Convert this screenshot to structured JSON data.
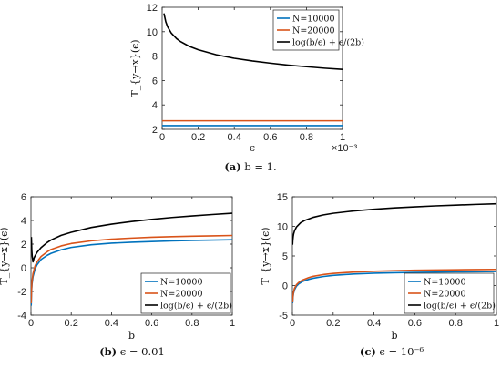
{
  "chart_data": [
    {
      "type": "line",
      "id": "a",
      "caption_tag": "(a)",
      "caption_text": "b = 1.",
      "xlabel": "ϵ",
      "ylabel": "T_{y→x}(ϵ)",
      "x_exponent": "×10⁻³",
      "xlim": [
        0,
        0.001
      ],
      "ylim": [
        2,
        12
      ],
      "xticks": [
        0,
        0.0002,
        0.0004,
        0.0006,
        0.0008,
        0.001
      ],
      "xtick_labels": [
        "0",
        "0.2",
        "0.4",
        "0.6",
        "0.8",
        "1"
      ],
      "yticks": [
        2,
        4,
        6,
        8,
        10,
        12
      ],
      "ytick_labels": [
        "2",
        "4",
        "6",
        "8",
        "10",
        "12"
      ],
      "grid": false,
      "legend_position": "top-right",
      "series": [
        {
          "name": "N=10000",
          "color": "#0072BD",
          "x": [
            0,
            0.0002,
            0.0004,
            0.0006,
            0.0008,
            0.001
          ],
          "y": [
            2.3,
            2.3,
            2.3,
            2.3,
            2.3,
            2.3
          ]
        },
        {
          "name": "N=20000",
          "color": "#D95319",
          "x": [
            0,
            0.0002,
            0.0004,
            0.0006,
            0.0008,
            0.001
          ],
          "y": [
            2.7,
            2.7,
            2.7,
            2.7,
            2.7,
            2.7
          ]
        },
        {
          "name": "log(b/ϵ) + ϵ/(2b)",
          "color": "#000000",
          "x": [
            1e-05,
            2e-05,
            3e-05,
            5e-05,
            8e-05,
            0.0001,
            0.00015,
            0.0002,
            0.0003,
            0.0004,
            0.0005,
            0.0006,
            0.0007,
            0.0008,
            0.0009,
            0.001
          ],
          "y": [
            11.5,
            10.82,
            10.41,
            9.9,
            9.43,
            9.21,
            8.8,
            8.52,
            8.11,
            7.82,
            7.6,
            7.42,
            7.26,
            7.13,
            7.01,
            6.91
          ]
        }
      ]
    },
    {
      "type": "line",
      "id": "b",
      "caption_tag": "(b)",
      "caption_text": "ϵ = 0.01",
      "xlabel": "b",
      "ylabel": "T_{y→x}(ϵ)",
      "xlim": [
        0,
        1
      ],
      "ylim": [
        -4,
        6
      ],
      "xticks": [
        0,
        0.2,
        0.4,
        0.6,
        0.8,
        1
      ],
      "xtick_labels": [
        "0",
        "0.2",
        "0.4",
        "0.6",
        "0.8",
        "1"
      ],
      "yticks": [
        -4,
        -2,
        0,
        2,
        4,
        6
      ],
      "ytick_labels": [
        "-4",
        "-2",
        "0",
        "2",
        "4",
        "6"
      ],
      "grid": false,
      "legend_position": "bottom-right",
      "series": [
        {
          "name": "N=10000",
          "color": "#0072BD",
          "x": [
            0.001,
            0.003,
            0.005,
            0.01,
            0.02,
            0.03,
            0.05,
            0.08,
            0.1,
            0.15,
            0.2,
            0.3,
            0.4,
            0.5,
            0.6,
            0.7,
            0.8,
            0.9,
            1.0
          ],
          "y": [
            -3.2,
            -2.0,
            -1.4,
            -0.75,
            -0.1,
            0.25,
            0.7,
            1.05,
            1.22,
            1.52,
            1.72,
            1.95,
            2.08,
            2.16,
            2.22,
            2.27,
            2.31,
            2.34,
            2.37
          ]
        },
        {
          "name": "N=20000",
          "color": "#D95319",
          "x": [
            0.001,
            0.003,
            0.005,
            0.01,
            0.02,
            0.03,
            0.05,
            0.08,
            0.1,
            0.15,
            0.2,
            0.3,
            0.4,
            0.5,
            0.6,
            0.7,
            0.8,
            0.9,
            1.0
          ],
          "y": [
            -3.0,
            -1.8,
            -1.2,
            -0.5,
            0.15,
            0.5,
            0.95,
            1.35,
            1.55,
            1.85,
            2.05,
            2.28,
            2.42,
            2.51,
            2.58,
            2.63,
            2.67,
            2.7,
            2.73
          ]
        },
        {
          "name": "log(b/ϵ) + ϵ/(2b)",
          "color": "#000000",
          "x": [
            0.002,
            0.004,
            0.006,
            0.008,
            0.01,
            0.012,
            0.015,
            0.02,
            0.03,
            0.05,
            0.08,
            0.1,
            0.15,
            0.2,
            0.3,
            0.4,
            0.5,
            0.6,
            0.7,
            0.8,
            0.9,
            1.0
          ],
          "y": [
            2.6,
            1.5,
            0.97,
            0.75,
            0.5,
            0.6,
            0.82,
            1.0,
            1.3,
            1.7,
            2.13,
            2.35,
            2.74,
            3.0,
            3.41,
            3.69,
            3.91,
            4.09,
            4.25,
            4.38,
            4.5,
            4.61
          ]
        }
      ]
    },
    {
      "type": "line",
      "id": "c",
      "caption_tag": "(c)",
      "caption_text": "ϵ = 10⁻⁶",
      "xlabel": "b",
      "ylabel": "T_{y→x}(ϵ)",
      "xlim": [
        0,
        1
      ],
      "ylim": [
        -5,
        15
      ],
      "xticks": [
        0,
        0.2,
        0.4,
        0.6,
        0.8,
        1
      ],
      "xtick_labels": [
        "0",
        "0.2",
        "0.4",
        "0.6",
        "0.8",
        "1"
      ],
      "yticks": [
        -5,
        0,
        5,
        10,
        15
      ],
      "ytick_labels": [
        "-5",
        "0",
        "5",
        "10",
        "15"
      ],
      "grid": false,
      "legend_position": "bottom-right",
      "series": [
        {
          "name": "N=10000",
          "color": "#0072BD",
          "x": [
            0.001,
            0.003,
            0.005,
            0.01,
            0.02,
            0.03,
            0.05,
            0.08,
            0.1,
            0.15,
            0.2,
            0.3,
            0.4,
            0.5,
            0.6,
            0.7,
            0.8,
            0.9,
            1.0
          ],
          "y": [
            -3.0,
            -2.0,
            -1.4,
            -0.75,
            -0.1,
            0.25,
            0.7,
            1.05,
            1.22,
            1.52,
            1.72,
            1.95,
            2.08,
            2.16,
            2.22,
            2.27,
            2.31,
            2.34,
            2.37
          ]
        },
        {
          "name": "N=20000",
          "color": "#D95319",
          "x": [
            0.001,
            0.003,
            0.005,
            0.01,
            0.02,
            0.03,
            0.05,
            0.08,
            0.1,
            0.15,
            0.2,
            0.3,
            0.4,
            0.5,
            0.6,
            0.7,
            0.8,
            0.9,
            1.0
          ],
          "y": [
            -2.8,
            -1.8,
            -1.2,
            -0.5,
            0.15,
            0.5,
            0.95,
            1.35,
            1.55,
            1.85,
            2.05,
            2.28,
            2.42,
            2.51,
            2.58,
            2.63,
            2.67,
            2.7,
            2.73
          ]
        },
        {
          "name": "log(b/ϵ) + ϵ/(2b)",
          "color": "#000000",
          "x": [
            0.001,
            0.002,
            0.004,
            0.006,
            0.01,
            0.02,
            0.04,
            0.06,
            0.1,
            0.15,
            0.2,
            0.3,
            0.4,
            0.5,
            0.6,
            0.7,
            0.8,
            0.9,
            1.0
          ],
          "y": [
            6.9,
            7.6,
            8.29,
            8.7,
            9.21,
            9.9,
            10.6,
            11.0,
            11.51,
            11.92,
            12.21,
            12.61,
            12.9,
            13.12,
            13.3,
            13.46,
            13.59,
            13.71,
            13.82
          ]
        }
      ]
    }
  ]
}
